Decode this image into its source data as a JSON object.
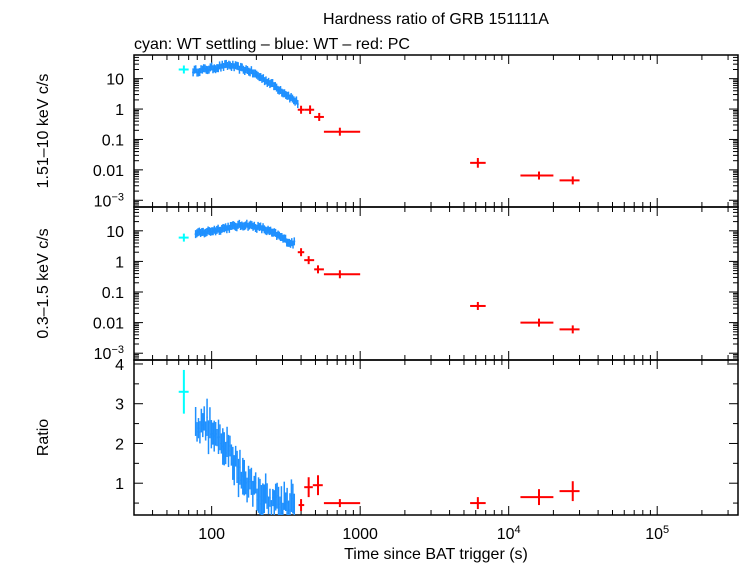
{
  "title": "Hardness ratio of GRB 151111A",
  "subtitle": "cyan: WT settling – blue: WT – red: PC",
  "colors": {
    "cyan": "#00ffff",
    "blue": "#1e90ff",
    "red": "#ff0000",
    "axis": "#000000"
  },
  "xlabel": "Time since BAT trigger (s)",
  "chart_data": [
    {
      "panel": "hard",
      "type": "scatter",
      "ylabel": "1.51–10 keV c/s",
      "xscale": "log",
      "yscale": "log",
      "xlim": [
        30,
        350000
      ],
      "ylim": [
        0.0006,
        60
      ],
      "xticks": [
        {
          "v": 100,
          "label": "100"
        },
        {
          "v": 1000,
          "label": "1000"
        },
        {
          "v": 10000,
          "label": "10",
          "sup": "4"
        },
        {
          "v": 100000,
          "label": "10",
          "sup": "5"
        }
      ],
      "yticks": [
        {
          "v": 10,
          "label": "10"
        },
        {
          "v": 1,
          "label": "1"
        },
        {
          "v": 0.1,
          "label": "0.1"
        },
        {
          "v": 0.01,
          "label": "0.01"
        },
        {
          "v": 0.001,
          "label": "10",
          "sup": "−3"
        }
      ],
      "series": [
        {
          "color": "cyan",
          "points": [
            [
              65,
              20,
              60,
              70,
              0
            ]
          ]
        },
        {
          "color": "blue",
          "trend": [
            [
              80,
              18
            ],
            [
              100,
              22
            ],
            [
              130,
              28
            ],
            [
              180,
              18
            ],
            [
              250,
              7
            ],
            [
              320,
              3
            ],
            [
              380,
              1.6
            ]
          ],
          "npoints": 80,
          "xrange": [
            75,
            380
          ]
        },
        {
          "color": "red",
          "points": [
            [
              400,
              0.95,
              380,
              420,
              0.25
            ],
            [
              460,
              0.95,
              420,
              490,
              0.3
            ],
            [
              530,
              0.55,
              490,
              570,
              0.15
            ],
            [
              730,
              0.18,
              570,
              1000,
              0.03
            ],
            [
              6200,
              0.017,
              5500,
              7000,
              0.006
            ],
            [
              16000,
              0.0065,
              12000,
              20000,
              0.0018
            ],
            [
              27000,
              0.0045,
              22000,
              30000,
              0.0012
            ]
          ]
        }
      ]
    },
    {
      "panel": "soft",
      "type": "scatter",
      "ylabel": "0.3–1.5 keV c/s",
      "xscale": "log",
      "yscale": "log",
      "xlim": [
        30,
        350000
      ],
      "ylim": [
        0.0006,
        60
      ],
      "xticks": [
        {
          "v": 100,
          "label": "100"
        },
        {
          "v": 1000,
          "label": "1000"
        },
        {
          "v": 10000,
          "label": "10",
          "sup": "4"
        },
        {
          "v": 100000,
          "label": "10",
          "sup": "5"
        }
      ],
      "yticks": [
        {
          "v": 10,
          "label": "10"
        },
        {
          "v": 1,
          "label": "1"
        },
        {
          "v": 0.1,
          "label": "0.1"
        },
        {
          "v": 0.01,
          "label": "0.01"
        },
        {
          "v": 0.001,
          "label": "10",
          "sup": "−3"
        }
      ],
      "series": [
        {
          "color": "cyan",
          "points": [
            [
              65,
              6,
              60,
              70,
              0
            ]
          ]
        },
        {
          "color": "blue",
          "trend": [
            [
              80,
              8
            ],
            [
              100,
              10
            ],
            [
              130,
              13
            ],
            [
              170,
              16
            ],
            [
              220,
              12
            ],
            [
              280,
              7
            ],
            [
              340,
              4
            ]
          ],
          "npoints": 80,
          "xrange": [
            78,
            360
          ]
        },
        {
          "color": "red",
          "points": [
            [
              400,
              2.0,
              380,
              420,
              0.5
            ],
            [
              450,
              1.1,
              420,
              490,
              0.3
            ],
            [
              520,
              0.55,
              490,
              570,
              0.15
            ],
            [
              730,
              0.38,
              570,
              1000,
              0.05
            ],
            [
              6200,
              0.035,
              5500,
              7000,
              0.006
            ],
            [
              16000,
              0.01,
              12000,
              20000,
              0.0015
            ],
            [
              27000,
              0.006,
              22000,
              30000,
              0.0012
            ]
          ]
        }
      ]
    },
    {
      "panel": "ratio",
      "type": "scatter",
      "ylabel": "Ratio",
      "xscale": "log",
      "yscale": "linear",
      "xlim": [
        30,
        350000
      ],
      "ylim": [
        0.2,
        4.1
      ],
      "xticks": [
        {
          "v": 100,
          "label": "100"
        },
        {
          "v": 1000,
          "label": "1000"
        },
        {
          "v": 10000,
          "label": "10",
          "sup": "4"
        },
        {
          "v": 100000,
          "label": "10",
          "sup": "5"
        }
      ],
      "yticks": [
        {
          "v": 4,
          "label": "4"
        },
        {
          "v": 3,
          "label": "3"
        },
        {
          "v": 2,
          "label": "2"
        },
        {
          "v": 1,
          "label": "1"
        }
      ],
      "series": [
        {
          "color": "cyan",
          "points": [
            [
              65,
              3.3,
              60,
              70,
              0.55
            ]
          ]
        },
        {
          "color": "blue",
          "trend": [
            [
              80,
              2.5
            ],
            [
              95,
              2.4
            ],
            [
              110,
              2.0
            ],
            [
              130,
              1.8
            ],
            [
              160,
              1.2
            ],
            [
              200,
              0.8
            ],
            [
              250,
              0.55
            ],
            [
              300,
              0.5
            ],
            [
              350,
              0.55
            ]
          ],
          "npoints": 70,
          "xrange": [
            78,
            360
          ],
          "yerr": 0.35
        },
        {
          "color": "red",
          "points": [
            [
              400,
              0.45,
              385,
              420,
              0.15
            ],
            [
              450,
              0.9,
              420,
              480,
              0.25
            ],
            [
              520,
              0.95,
              480,
              560,
              0.25
            ],
            [
              730,
              0.5,
              570,
              1000,
              0.1
            ],
            [
              6200,
              0.5,
              5500,
              7000,
              0.15
            ],
            [
              16000,
              0.65,
              12000,
              20000,
              0.2
            ],
            [
              27000,
              0.8,
              22000,
              30000,
              0.25
            ]
          ]
        }
      ]
    }
  ]
}
